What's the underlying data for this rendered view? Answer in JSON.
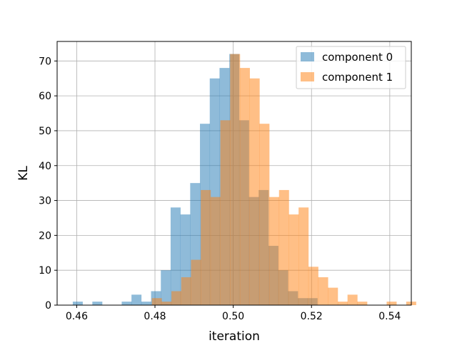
{
  "chart_data": {
    "type": "bar",
    "subtype": "overlapping-histogram",
    "xlabel": "iteration",
    "ylabel": "KL",
    "xlim": [
      0.455,
      0.5455
    ],
    "ylim": [
      0,
      75.6
    ],
    "xticks": [
      0.46,
      0.48,
      0.5,
      0.52,
      0.54
    ],
    "xtick_labels": [
      "0.46",
      "0.48",
      "0.50",
      "0.52",
      "0.54"
    ],
    "yticks": [
      0,
      10,
      20,
      30,
      40,
      50,
      60,
      70
    ],
    "ytick_labels": [
      "0",
      "10",
      "20",
      "30",
      "40",
      "50",
      "60",
      "70"
    ],
    "grid": true,
    "legend": "top-right",
    "series": [
      {
        "name": "component 0",
        "color": "#1f77b4",
        "alpha": 0.5,
        "bin_start": 0.459,
        "bin_width": 0.0025,
        "values": [
          1,
          0,
          1,
          0,
          0,
          1,
          3,
          1,
          4,
          10,
          28,
          26,
          35,
          52,
          65,
          68,
          72,
          53,
          31,
          33,
          17,
          10,
          4,
          2,
          2,
          0
        ]
      },
      {
        "name": "component 1",
        "color": "#ff7f0e",
        "alpha": 0.5,
        "bin_start": 0.4792,
        "bin_width": 0.0025,
        "values": [
          2,
          1,
          4,
          8,
          13,
          33,
          31,
          53,
          72,
          68,
          65,
          52,
          31,
          33,
          26,
          28,
          11,
          8,
          5,
          1,
          3,
          1,
          0,
          0,
          1,
          0,
          1
        ]
      }
    ]
  }
}
